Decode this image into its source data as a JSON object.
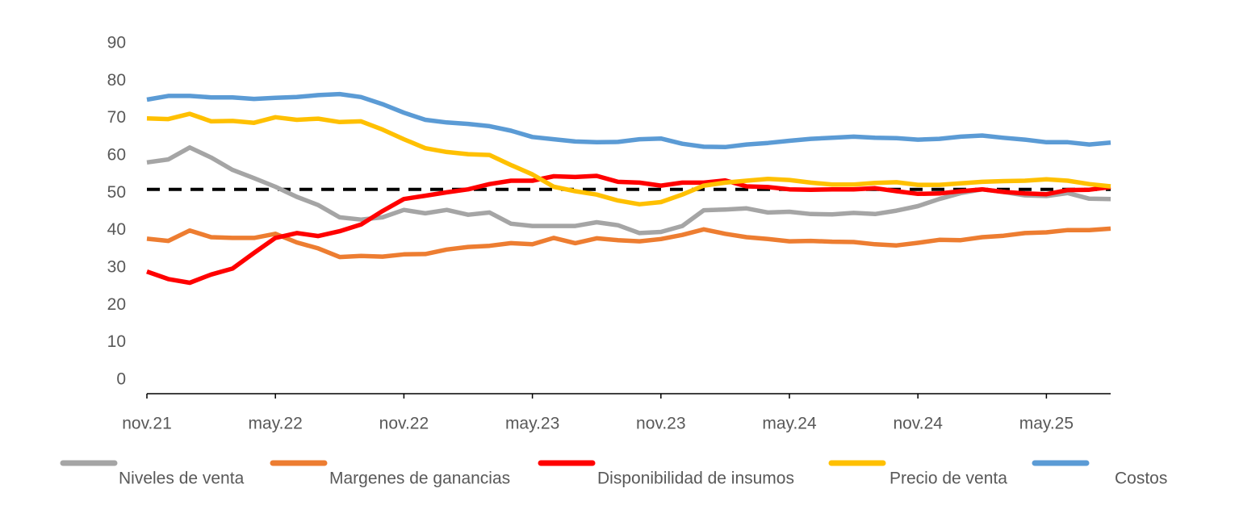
{
  "chart_data": {
    "type": "line",
    "categories": [
      "nov.21",
      null,
      null,
      null,
      null,
      null,
      "may.22",
      null,
      null,
      null,
      null,
      null,
      "nov.22",
      null,
      null,
      null,
      null,
      null,
      "may.23",
      null,
      null,
      null,
      null,
      null,
      "nov.23",
      null,
      null,
      null,
      null,
      null,
      "may.24",
      null,
      null,
      null,
      null,
      null,
      "nov.24",
      null,
      null,
      null,
      null,
      null,
      "may.25",
      null,
      null,
      null
    ],
    "ylim": [
      0,
      90
    ],
    "yticks": [
      0,
      10,
      20,
      30,
      40,
      50,
      60,
      70,
      80,
      90
    ],
    "grid": false,
    "legend": "bottom",
    "reference_line": {
      "value": 51,
      "color": "#000000"
    },
    "series": [
      {
        "name": "Niveles de venta",
        "color": "#a5a5a5",
        "values": [
          58.2,
          59,
          62.2,
          59.5,
          56.2,
          54,
          51.7,
          49,
          46.8,
          43.5,
          42.9,
          43.5,
          45.5,
          44.6,
          45.5,
          44.2,
          44.8,
          41.8,
          41.2,
          41.2,
          41.2,
          42.2,
          41.4,
          39.3,
          39.6,
          41.2,
          45.4,
          45.6,
          45.9,
          44.8,
          45,
          44.4,
          44.3,
          44.7,
          44.4,
          45.3,
          46.5,
          48.4,
          50,
          51,
          50.3,
          49.4,
          49.2,
          50,
          48.5,
          48.4
        ]
      },
      {
        "name": "Margenes de ganancias",
        "color": "#ed7d31",
        "values": [
          37.8,
          37.2,
          40,
          38.2,
          38,
          38,
          39.1,
          36.8,
          35.2,
          32.9,
          33.2,
          33,
          33.6,
          33.7,
          34.9,
          35.6,
          35.9,
          36.6,
          36.3,
          38,
          36.6,
          37.9,
          37.4,
          37.1,
          37.7,
          38.8,
          40.3,
          39.1,
          38.2,
          37.7,
          37.1,
          37.2,
          37,
          36.9,
          36.3,
          36,
          36.7,
          37.5,
          37.4,
          38.2,
          38.6,
          39.3,
          39.5,
          40.1,
          40.1,
          40.5
        ]
      },
      {
        "name": "Disponibilidad de insumos",
        "color": "#ff0000",
        "values": [
          29,
          27,
          26,
          28.2,
          29.8,
          34,
          38,
          39.3,
          38.5,
          39.8,
          41.6,
          45.2,
          48.4,
          49.3,
          50.2,
          51,
          52.4,
          53.3,
          53.3,
          54.5,
          54.3,
          54.6,
          53,
          52.8,
          52,
          52.8,
          52.8,
          53.4,
          51.8,
          51.6,
          51,
          50.9,
          51,
          51,
          51.3,
          50.5,
          49.8,
          49.9,
          50.5,
          51,
          50.3,
          49.9,
          49.7,
          50.8,
          50.9,
          51.6
        ]
      },
      {
        "name": "Precio de venta",
        "color": "#ffc000",
        "values": [
          70,
          69.8,
          71.2,
          69.2,
          69.3,
          68.8,
          70.3,
          69.6,
          69.9,
          69,
          69.2,
          67,
          64.4,
          62,
          61,
          60.4,
          60.2,
          57.5,
          55,
          51.7,
          50.5,
          49.6,
          48,
          47,
          47.6,
          49.6,
          52,
          52.8,
          53.3,
          53.8,
          53.5,
          52.8,
          52.3,
          52.3,
          52.7,
          52.9,
          52.2,
          52.2,
          52.6,
          53,
          53.2,
          53.3,
          53.7,
          53.3,
          52.4,
          51.8
        ]
      },
      {
        "name": "Costos",
        "color": "#5b9bd5",
        "values": [
          75,
          76,
          76,
          75.6,
          75.6,
          75.2,
          75.5,
          75.7,
          76.2,
          76.5,
          75.7,
          73.8,
          71.5,
          69.6,
          68.9,
          68.5,
          67.9,
          66.7,
          65,
          64.4,
          63.8,
          63.6,
          63.7,
          64.4,
          64.6,
          63.2,
          62.4,
          62.3,
          63,
          63.4,
          64,
          64.5,
          64.8,
          65.1,
          64.8,
          64.7,
          64.3,
          64.5,
          65.1,
          65.4,
          64.8,
          64.3,
          63.6,
          63.6,
          63,
          63.5
        ]
      }
    ]
  }
}
